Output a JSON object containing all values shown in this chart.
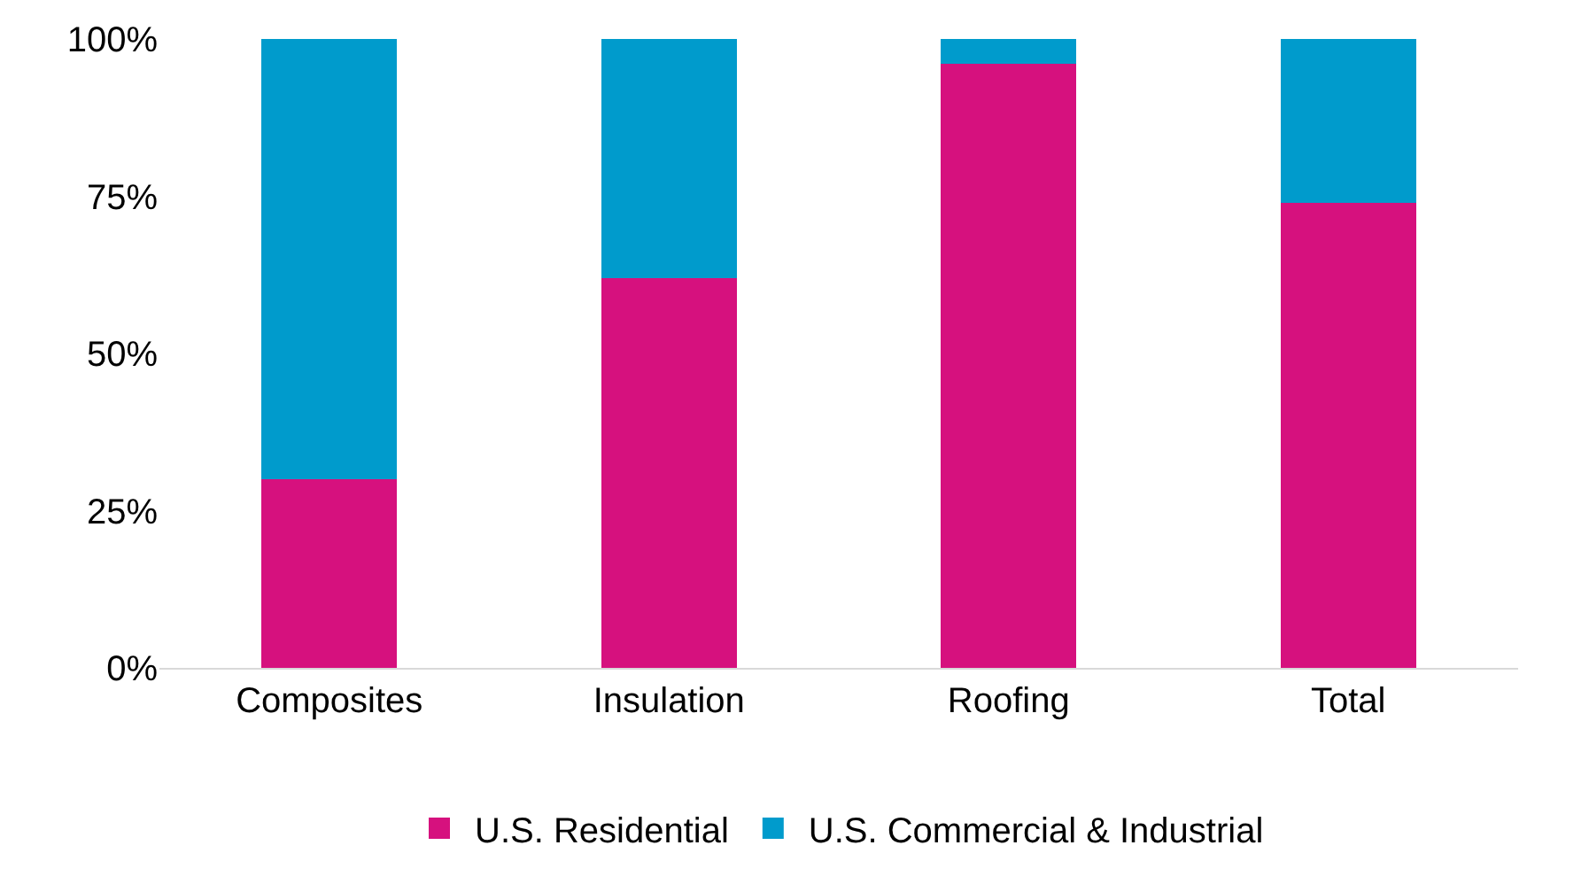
{
  "chart_data": {
    "type": "bar",
    "stacked": true,
    "categories": [
      "Composites",
      "Insulation",
      "Roofing",
      "Total"
    ],
    "series": [
      {
        "name": "U.S. Residential",
        "color": "#d6117e",
        "values": [
          30,
          62,
          96,
          74
        ]
      },
      {
        "name": "U.S. Commercial & Industrial",
        "color": "#009bcc",
        "values": [
          70,
          38,
          4,
          26
        ]
      }
    ],
    "ylim": [
      0,
      100
    ],
    "yticks": [
      {
        "value": 0,
        "label": "0%"
      },
      {
        "value": 25,
        "label": "25%"
      },
      {
        "value": 50,
        "label": "50%"
      },
      {
        "value": 75,
        "label": "75%"
      },
      {
        "value": 100,
        "label": "100%"
      }
    ],
    "grid": false,
    "legend": "bottom"
  }
}
